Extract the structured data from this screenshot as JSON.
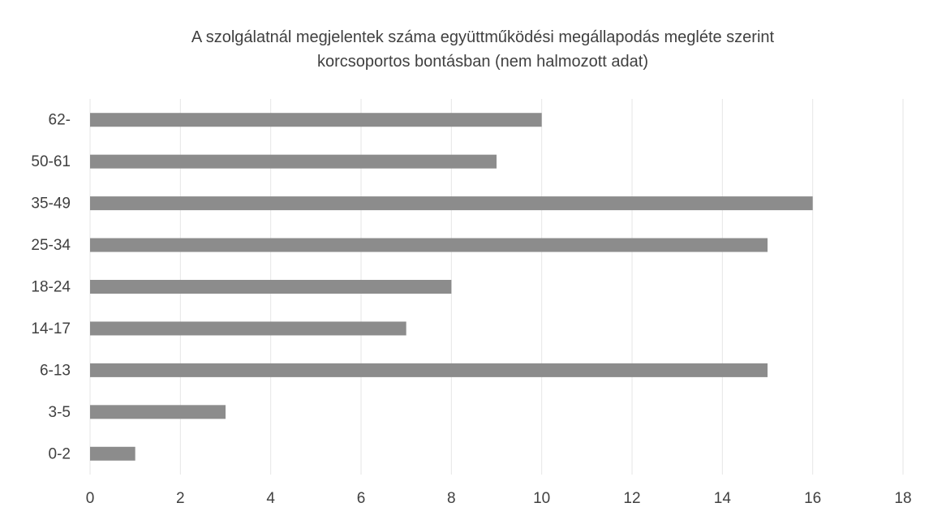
{
  "chart_data": {
    "type": "bar",
    "orientation": "horizontal",
    "title": [
      "A szolgálatnál megjelentek száma együttműködési megállapodás megléte szerint",
      "korcsoportos bontásban (nem halmozott adat)"
    ],
    "categories": [
      "62-",
      "50-61",
      "35-49",
      "25-34",
      "18-24",
      "14-17",
      "6-13",
      "3-5",
      "0-2"
    ],
    "values": [
      10,
      9,
      16,
      15,
      8,
      7,
      15,
      3,
      1
    ],
    "xlim": [
      0,
      18
    ],
    "xticks": [
      "0",
      "2",
      "4",
      "6",
      "8",
      "10",
      "12",
      "14",
      "16",
      "18"
    ],
    "xlabel": "",
    "ylabel": "",
    "grid": true,
    "legend": "none",
    "colors": {
      "bar": "#8c8c8c",
      "grid": "#e6e6e6",
      "text": "#404040"
    }
  }
}
